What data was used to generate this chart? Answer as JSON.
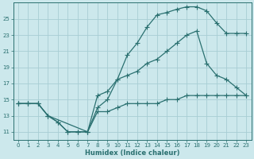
{
  "xlabel": "Humidex (Indice chaleur)",
  "bg_color": "#cce8ec",
  "grid_color": "#a8cdd4",
  "line_color": "#2a7070",
  "xlim": [
    -0.5,
    23.5
  ],
  "ylim": [
    10.0,
    27.0
  ],
  "xticks": [
    0,
    1,
    2,
    3,
    4,
    5,
    6,
    7,
    8,
    9,
    10,
    11,
    12,
    13,
    14,
    15,
    16,
    17,
    18,
    19,
    20,
    21,
    22,
    23
  ],
  "yticks": [
    11,
    13,
    15,
    17,
    19,
    21,
    23,
    25
  ],
  "line1_x": [
    0,
    1,
    2,
    3,
    4,
    5,
    6,
    7,
    8,
    9,
    10,
    11,
    12,
    13,
    14,
    15,
    16,
    17,
    18,
    19,
    20,
    21,
    22,
    23
  ],
  "line1_y": [
    14.5,
    14.5,
    14.5,
    13.0,
    12.2,
    11.0,
    11.0,
    11.0,
    14.0,
    15.0,
    17.5,
    20.5,
    22.0,
    24.0,
    25.5,
    25.8,
    26.2,
    26.5,
    26.5,
    26.0,
    24.5,
    23.2,
    23.2,
    23.2
  ],
  "line2_x": [
    0,
    1,
    2,
    3,
    7,
    8,
    9,
    10,
    11,
    12,
    13,
    14,
    15,
    16,
    17,
    18,
    19,
    20,
    21,
    22,
    23
  ],
  "line2_y": [
    14.5,
    14.5,
    14.5,
    13.0,
    11.0,
    15.5,
    16.0,
    17.5,
    18.0,
    18.5,
    19.5,
    20.0,
    21.0,
    22.0,
    23.0,
    23.5,
    19.5,
    18.0,
    17.5,
    16.5,
    15.5
  ],
  "line3_x": [
    0,
    1,
    2,
    3,
    4,
    5,
    6,
    7,
    8,
    9,
    10,
    11,
    12,
    13,
    14,
    15,
    16,
    17,
    18,
    19,
    20,
    21,
    22,
    23
  ],
  "line3_y": [
    14.5,
    14.5,
    14.5,
    13.0,
    12.2,
    11.0,
    11.0,
    11.0,
    13.5,
    13.5,
    14.0,
    14.5,
    14.5,
    14.5,
    14.5,
    15.0,
    15.0,
    15.5,
    15.5,
    15.5,
    15.5,
    15.5,
    15.5,
    15.5
  ]
}
